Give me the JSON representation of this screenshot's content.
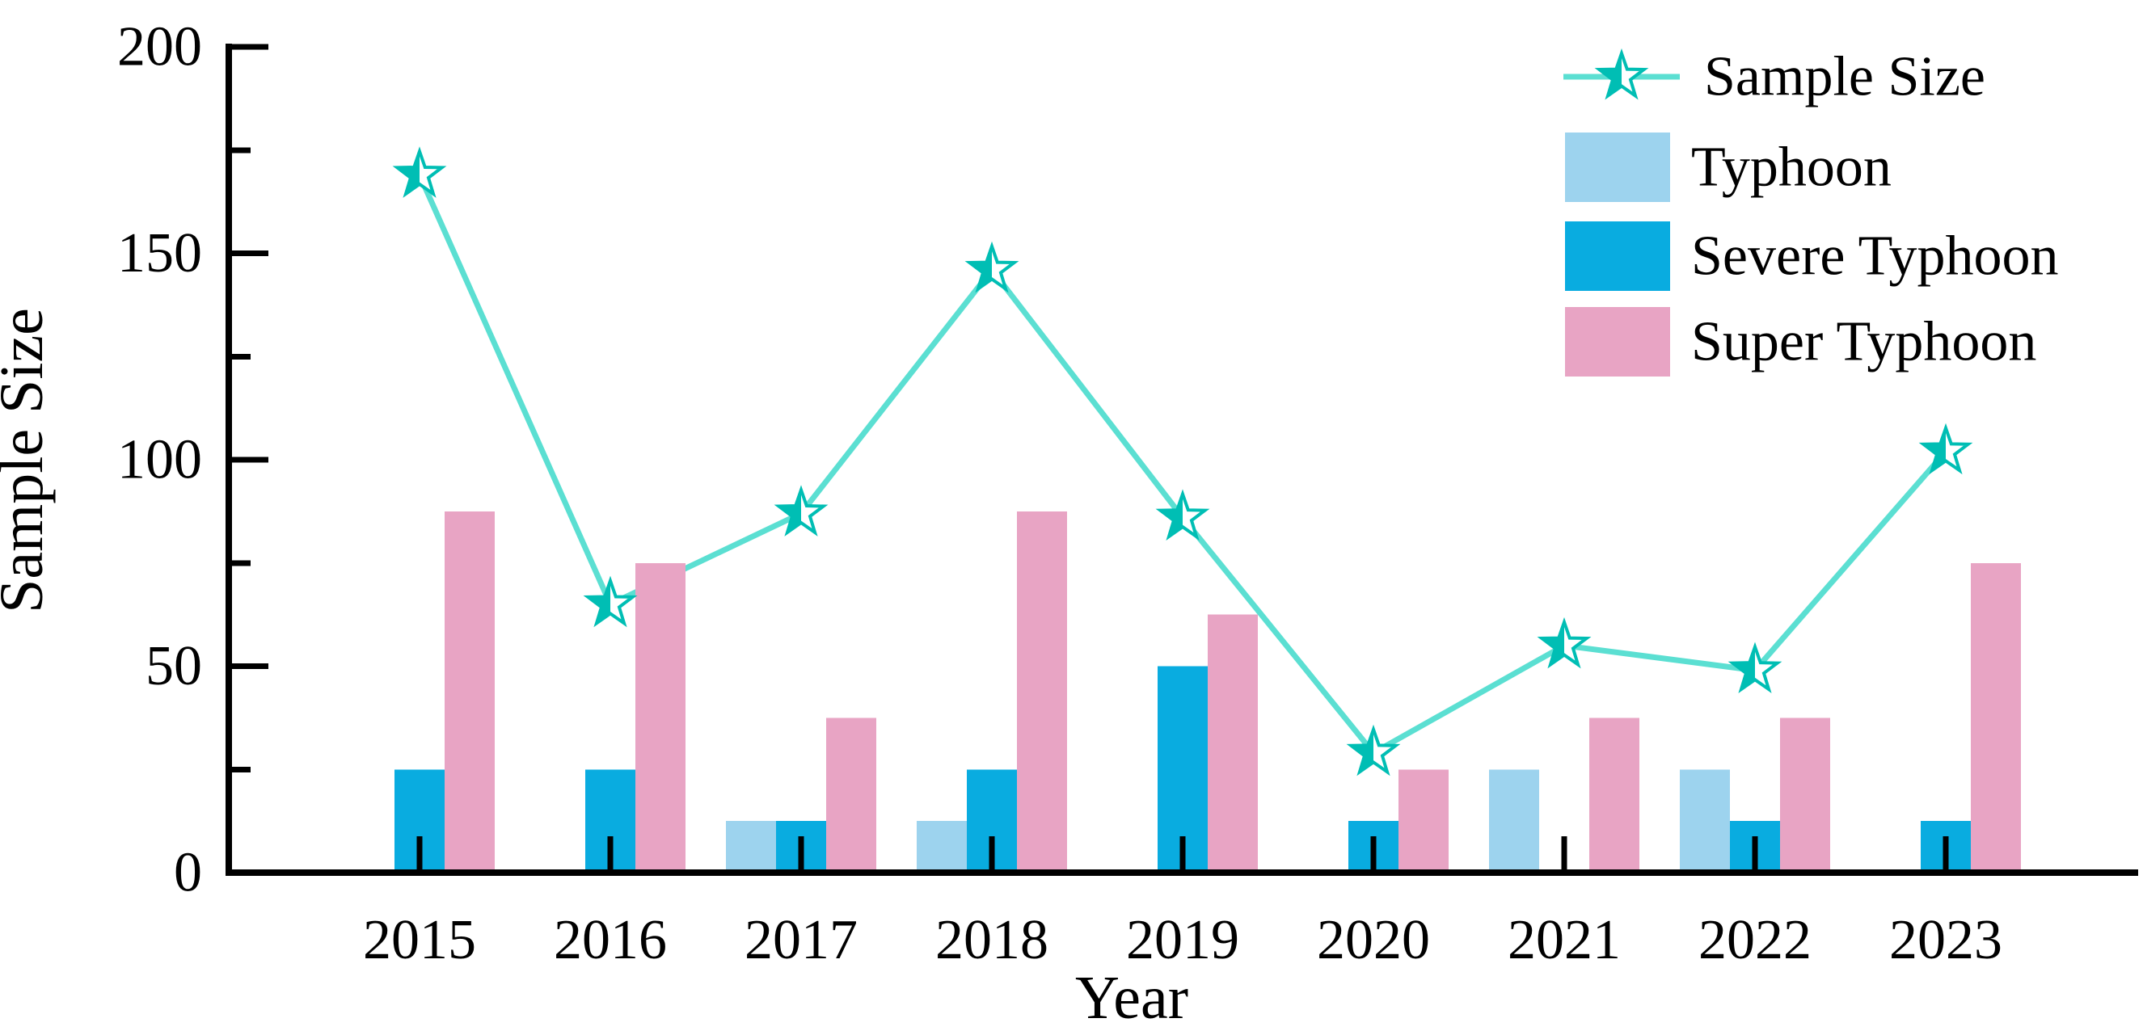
{
  "page": {
    "background": "#ffffff"
  },
  "chart_data": {
    "type": "bar+line",
    "title": "",
    "xlabel": "Year",
    "ylabel": "Sample Size",
    "categories": [
      "2015",
      "2016",
      "2017",
      "2018",
      "2019",
      "2020",
      "2021",
      "2022",
      "2023"
    ],
    "y_axis": {
      "min": 0,
      "max": 200,
      "major_ticks": [
        0,
        50,
        100,
        150,
        200
      ],
      "minor_ticks": [
        25,
        75,
        125,
        175
      ]
    },
    "grid": false,
    "legend_position": "top-right",
    "axis_color": "#000000",
    "tick_label_color": "#000000",
    "series": [
      {
        "name": "Sample Size",
        "type": "line",
        "marker": "left-half-filled-star",
        "line_color": "#5BDFD2",
        "marker_color": "#00BEB4",
        "values": [
          169,
          65,
          87,
          146,
          86,
          29,
          55,
          49,
          102
        ]
      },
      {
        "name": "Typhoon",
        "type": "bar",
        "color": "#9DD3EE",
        "values": [
          0,
          0,
          12.5,
          12.5,
          0,
          0,
          25,
          25,
          0
        ]
      },
      {
        "name": "Severe Typhoon",
        "type": "bar",
        "color": "#09ACE0",
        "values": [
          25,
          25,
          12.5,
          25,
          50,
          12.5,
          0,
          12.5,
          12.5
        ]
      },
      {
        "name": "Super Typhoon",
        "type": "bar",
        "color": "#E8A4C4",
        "values": [
          87.5,
          75,
          37.5,
          87.5,
          62.5,
          25,
          37.5,
          37.5,
          75
        ]
      }
    ]
  }
}
